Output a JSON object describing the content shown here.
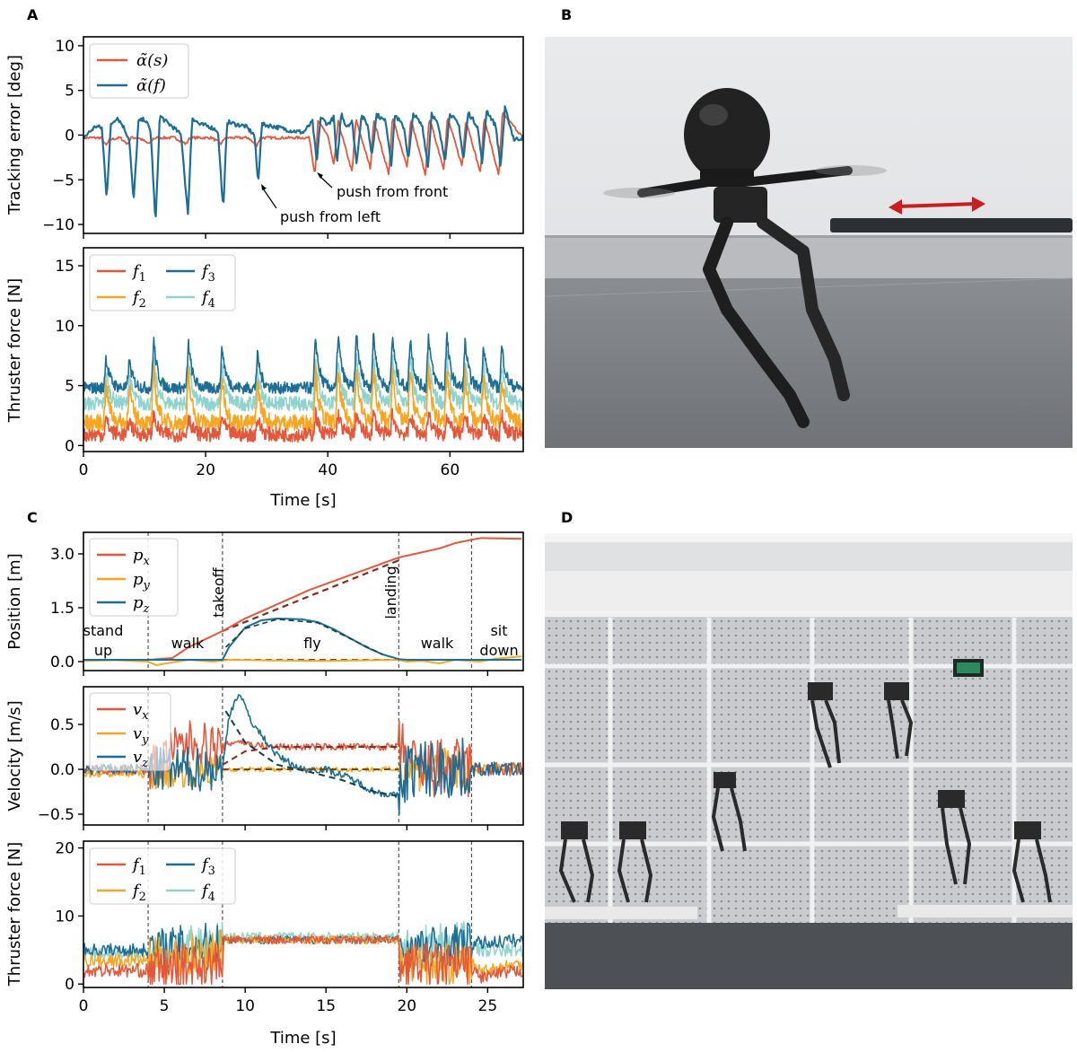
{
  "panels": {
    "A": "A",
    "B": "B",
    "C": "C",
    "D": "D"
  },
  "chart_data": [
    {
      "id": "A_top",
      "type": "line",
      "ylabel": "Tracking error [deg]",
      "xlim": [
        0,
        72
      ],
      "ylim": [
        -11,
        11
      ],
      "yticks": [
        10,
        5,
        0,
        -5,
        -10
      ],
      "yticklabels": [
        "10",
        "5",
        "0",
        "−5",
        "−10"
      ],
      "legend": "top-left",
      "series": [
        {
          "name": "α̃(s)",
          "color": "#e4573a",
          "x": [
            0,
            3,
            3.7,
            4.3,
            6,
            7.2,
            7.8,
            9,
            10.8,
            11.4,
            12,
            15,
            16.8,
            17.4,
            18,
            21,
            22.6,
            23.1,
            24,
            27,
            28.3,
            29,
            37,
            37.9,
            38.4,
            40,
            41,
            41.7,
            44,
            44.6,
            47,
            47.5,
            50,
            50.6,
            53,
            53.6,
            56,
            56.6,
            59,
            59.6,
            62,
            62.6,
            65,
            65.6,
            68,
            68.6,
            72
          ],
          "y": [
            -0.3,
            -0.3,
            -1.2,
            -0.5,
            -0.3,
            -1,
            -0.3,
            -0.3,
            -1,
            -0.4,
            -0.3,
            -0.3,
            -1,
            -0.3,
            -0.3,
            -0.3,
            -1,
            -0.3,
            -0.3,
            -0.3,
            -1.2,
            -0.3,
            -0.3,
            -4.5,
            1.5,
            0,
            -3.5,
            1.5,
            -4.2,
            1.8,
            -3.8,
            1.8,
            -4.4,
            2,
            -3.6,
            1.8,
            -4.5,
            2,
            -3.8,
            2,
            -3.5,
            1.8,
            -4.3,
            2,
            -4.6,
            2.5,
            -0.3
          ]
        },
        {
          "name": "α̃(f)",
          "color": "#1c6e96",
          "x": [
            0,
            2,
            3,
            3.8,
            4.5,
            5.5,
            6.5,
            7.5,
            8.2,
            9,
            10,
            11,
            11.8,
            12.5,
            13.5,
            14.5,
            16,
            17.1,
            17.8,
            19,
            20.5,
            22,
            22.9,
            23.5,
            25,
            26.5,
            28,
            28.6,
            29.2,
            31,
            34,
            36,
            37.5,
            38.2,
            38.8,
            40,
            41,
            41.5,
            42.2,
            43,
            44,
            44.7,
            45.5,
            46.5,
            47.2,
            48,
            49.5,
            50.4,
            51,
            52.5,
            53.2,
            54,
            55.5,
            56.4,
            57,
            58,
            59.2,
            60,
            61.5,
            62.2,
            63,
            64.5,
            65.3,
            66,
            67.5,
            68.3,
            69,
            70.5,
            72
          ],
          "y": [
            -0.3,
            1,
            0.8,
            -7,
            1.2,
            2,
            1,
            -0.5,
            -7.5,
            1.5,
            1.8,
            0.5,
            -10,
            2.2,
            1.5,
            1,
            0,
            -9,
            2,
            1.2,
            1,
            0.5,
            -8.5,
            1.5,
            1.2,
            1,
            0,
            -5.5,
            1.2,
            1,
            0.5,
            0.3,
            1.5,
            -3.2,
            2,
            1.2,
            2,
            -3.5,
            2.5,
            1,
            1.5,
            -3.2,
            2.2,
            1.2,
            -2.2,
            2.3,
            1.5,
            -3.2,
            2.3,
            0.8,
            -2.8,
            2.4,
            1,
            -3.5,
            2.5,
            1.2,
            -2.8,
            2.5,
            1,
            -2.8,
            2.5,
            1,
            -3.2,
            2.8,
            1,
            -3.6,
            3,
            -0.5,
            -0.3
          ]
        }
      ],
      "annotations": [
        "push from front",
        "push from left"
      ]
    },
    {
      "id": "A_bottom",
      "type": "line",
      "ylabel": "Thruster force [N]",
      "xlabel": "Time [s]",
      "xlim": [
        0,
        72
      ],
      "ylim": [
        -0.5,
        16.5
      ],
      "xticks": [
        0,
        20,
        40,
        60
      ],
      "yticks": [
        15,
        10,
        5,
        0
      ],
      "legend": "top-left",
      "series": [
        {
          "name": "f1",
          "color": "#e4573a",
          "base": 0.9,
          "noise": 0.6
        },
        {
          "name": "f2",
          "color": "#f5a623",
          "base": 1.9,
          "noise": 0.7
        },
        {
          "name": "f3",
          "color": "#1c6e96",
          "base": 4.8,
          "noise": 0.5
        },
        {
          "name": "f4",
          "color": "#8fd3cf",
          "base": 3.5,
          "noise": 0.6
        }
      ],
      "spike_times": [
        3.7,
        7.5,
        11.5,
        17.2,
        22.7,
        28.5,
        38,
        41.7,
        44.7,
        47.5,
        50.6,
        53.5,
        56.5,
        59.5,
        62.5,
        65.5,
        68.5
      ],
      "spike_peaks": [
        7.9,
        7.5,
        9.6,
        9.2,
        8.9,
        8.1,
        9.8,
        10.1,
        10.3,
        10.2,
        10.0,
        9.9,
        10.2,
        10.0,
        9.4,
        9.2,
        9.0
      ]
    },
    {
      "id": "C_top",
      "type": "line",
      "ylabel": "Position [m]",
      "xlim": [
        0,
        27.2
      ],
      "ylim": [
        -0.25,
        3.6
      ],
      "yticks": [
        3.0,
        1.5,
        0.0
      ],
      "yticklabels": [
        "3.0",
        "1.5",
        "0.0"
      ],
      "legend": "top-left",
      "vlines": [
        4,
        8.6,
        19.5,
        24
      ],
      "phases": [
        "stand\nup",
        "walk",
        "takeoff",
        "fly",
        "landing",
        "walk",
        "sit\ndown"
      ],
      "series": [
        {
          "name": "px",
          "color": "#e4573a",
          "x": [
            0,
            4,
            5.5,
            6.5,
            8.6,
            10,
            14,
            19.5,
            20.5,
            22,
            23,
            24.3,
            24.6,
            27.2
          ],
          "y": [
            0.05,
            0.05,
            0.1,
            0.4,
            0.85,
            1.2,
            2.0,
            2.9,
            3.0,
            3.15,
            3.3,
            3.42,
            3.44,
            3.42
          ]
        },
        {
          "name": "py",
          "color": "#f5a623",
          "x": [
            0,
            2,
            4,
            4.5,
            5.5,
            6.5,
            8,
            9,
            12,
            15,
            19.5,
            20,
            21,
            22,
            23,
            24.5,
            25.5,
            27.2
          ],
          "y": [
            0.02,
            0.04,
            0,
            -0.1,
            -0.02,
            0.05,
            0,
            0.05,
            0.03,
            0.02,
            0.05,
            0,
            0.02,
            -0.05,
            0.05,
            0,
            0.08,
            0.15
          ]
        },
        {
          "name": "pz",
          "color": "#1c6e96",
          "x": [
            0,
            4,
            8.6,
            9,
            10,
            11,
            12,
            13.5,
            14.5,
            15.5,
            16.5,
            17.5,
            18.5,
            19.5,
            20,
            27.2
          ],
          "y": [
            0.05,
            0.05,
            0.05,
            0.4,
            0.95,
            1.15,
            1.2,
            1.18,
            1.1,
            0.9,
            0.65,
            0.4,
            0.2,
            0.07,
            0.05,
            0.05
          ]
        }
      ]
    },
    {
      "id": "C_mid",
      "type": "line",
      "ylabel": "Velocity [m/s]",
      "xlim": [
        0,
        27.2
      ],
      "ylim": [
        -0.62,
        0.92
      ],
      "yticks": [
        0.5,
        0.0,
        -0.5
      ],
      "yticklabels": [
        "0.5",
        "0.0",
        "−0.5"
      ],
      "legend": "top-left",
      "series": [
        {
          "name": "vx",
          "color": "#e4573a"
        },
        {
          "name": "vy",
          "color": "#f5a623"
        },
        {
          "name": "vz",
          "color": "#1c6e96"
        }
      ]
    },
    {
      "id": "C_bottom",
      "type": "line",
      "ylabel": "Thruster force [N]",
      "xlabel": "Time [s]",
      "xlim": [
        0,
        27.2
      ],
      "ylim": [
        -0.5,
        21
      ],
      "xticks": [
        0,
        5,
        10,
        15,
        20,
        25
      ],
      "yticks": [
        20,
        10,
        0
      ],
      "legend": "top-left",
      "series": [
        {
          "name": "f1",
          "color": "#e4573a"
        },
        {
          "name": "f2",
          "color": "#f5a623"
        },
        {
          "name": "f3",
          "color": "#1c6e96"
        },
        {
          "name": "f4",
          "color": "#8fd3cf"
        }
      ]
    }
  ],
  "legend_subscripts": [
    "1",
    "2",
    "3",
    "4"
  ]
}
